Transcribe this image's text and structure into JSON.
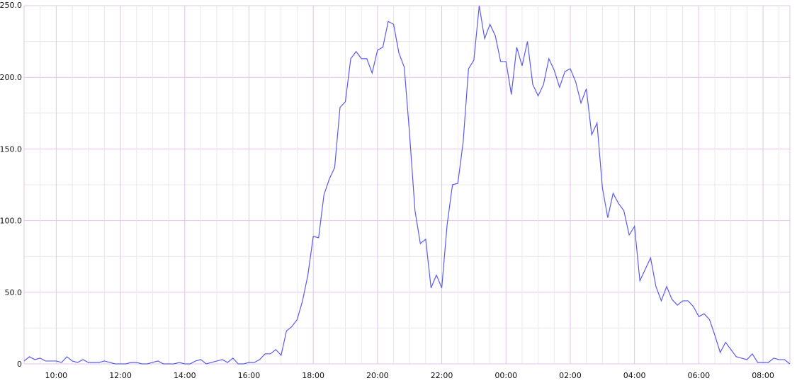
{
  "chart_data": {
    "type": "line",
    "title": "",
    "xlabel": "",
    "ylabel": "",
    "ylim": [
      0,
      250
    ],
    "y_ticks": [
      {
        "value": 0,
        "label": "0"
      },
      {
        "value": 50,
        "label": "50.0"
      },
      {
        "value": 100,
        "label": "100.0"
      },
      {
        "value": 150,
        "label": "150.0"
      },
      {
        "value": 200,
        "label": "200.0"
      },
      {
        "value": 250,
        "label": "250.0"
      }
    ],
    "x_range": [
      "09:00",
      "09:00 (+1 day)"
    ],
    "x_ticks": [
      "10:00",
      "12:00",
      "14:00",
      "16:00",
      "18:00",
      "20:00",
      "22:00",
      "00:00",
      "02:00",
      "04:00",
      "06:00",
      "08:00"
    ],
    "x_interval_minutes": 10,
    "grid": true,
    "legend": "none",
    "colors": {
      "line": "#5a5af0",
      "major_grid": "#e2c4e6",
      "minor_grid": "#ece6ee",
      "background": "#ffffff"
    },
    "series": [
      {
        "x_start": "09:00",
        "values": [
          2,
          5,
          3,
          4,
          2,
          2,
          2,
          1,
          5,
          2,
          1,
          3,
          1,
          1,
          1,
          2,
          1,
          0,
          0,
          0,
          1,
          1,
          0,
          0,
          1,
          2,
          0,
          0,
          0,
          1,
          0,
          0,
          2,
          3,
          0,
          1,
          2,
          3,
          1,
          4,
          0,
          0,
          1,
          1,
          3,
          7,
          7,
          10,
          6,
          23,
          26,
          31,
          44,
          62,
          89,
          88,
          118,
          129,
          137,
          179,
          183,
          213,
          218,
          213,
          213,
          203,
          219,
          221,
          239,
          237,
          217,
          207,
          160,
          107,
          84,
          87,
          53,
          62,
          53,
          97,
          125,
          126,
          155,
          206,
          212,
          250,
          227,
          237,
          229,
          211,
          211,
          188,
          221,
          208,
          225,
          195,
          187,
          195,
          213,
          205,
          193,
          204,
          206,
          197,
          182,
          192,
          160,
          168,
          123,
          102,
          119,
          112,
          107,
          90,
          96,
          58,
          66,
          74,
          54,
          44,
          54,
          45,
          41,
          44,
          44,
          40,
          33,
          35,
          31,
          20,
          8,
          15,
          10,
          5,
          4,
          3,
          7,
          1,
          1,
          1,
          4,
          3,
          3,
          0
        ]
      }
    ]
  }
}
